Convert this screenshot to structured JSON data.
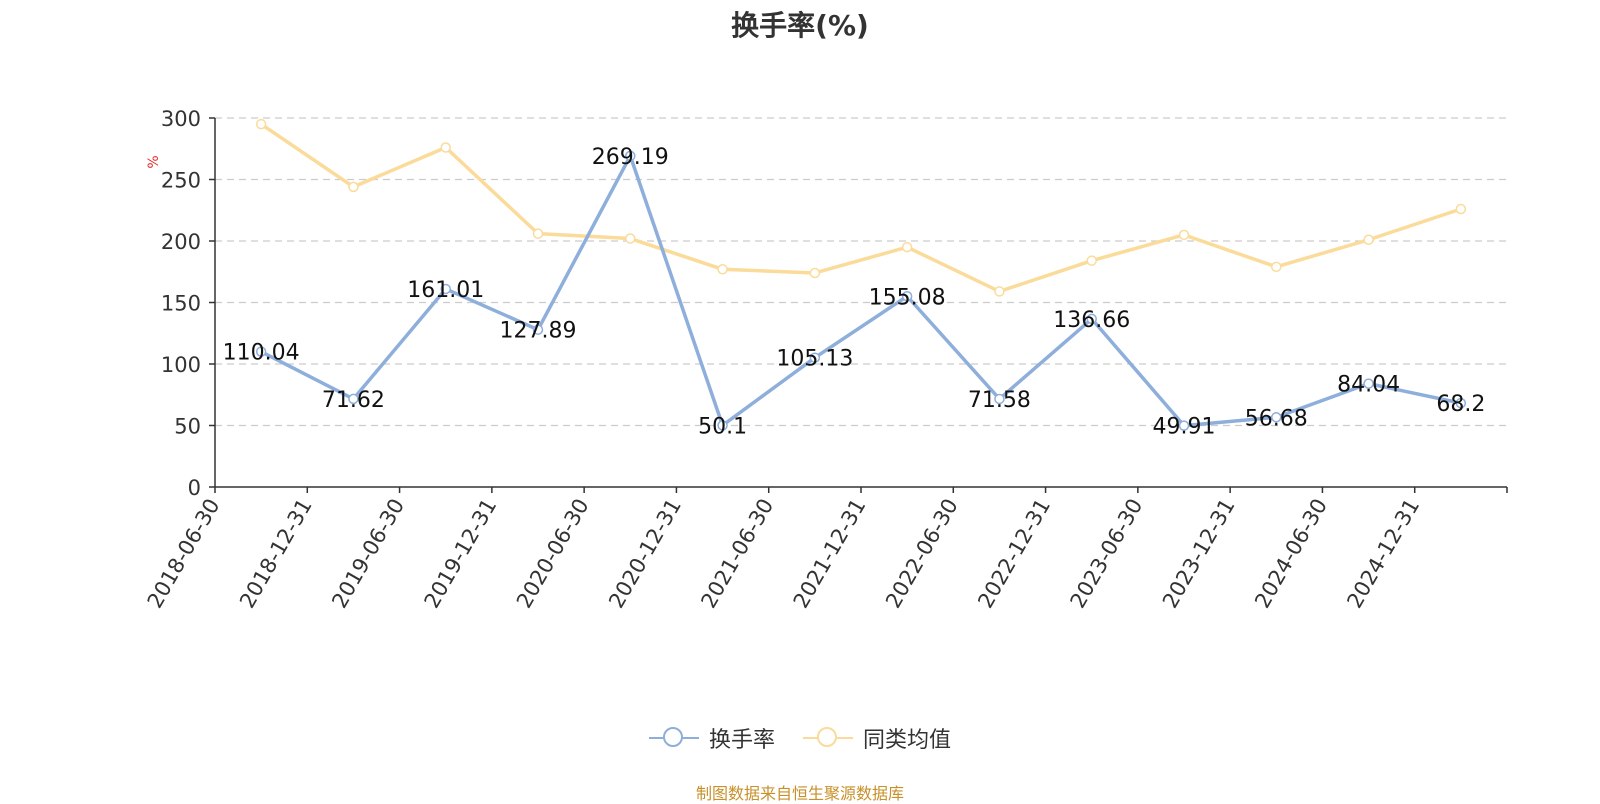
{
  "title": "换手率(%)",
  "source_note": "制图数据来自恒生聚源数据库",
  "legend_items": [
    {
      "label": "换手率",
      "color": "#8eaedb"
    },
    {
      "label": "同类均值",
      "color": "#fadb9a"
    }
  ],
  "chart_data": {
    "type": "line",
    "title": "换手率(%)",
    "ylabel": "%",
    "xlabel": "",
    "ylim": [
      0,
      300
    ],
    "yticks": [
      "0",
      "50",
      "100",
      "150",
      "200",
      "250",
      "300"
    ],
    "grid": true,
    "legend_position": "bottom",
    "categories": [
      "2018-06-30",
      "2018-12-31",
      "2019-06-30",
      "2019-12-31",
      "2020-06-30",
      "2020-12-31",
      "2021-06-30",
      "2021-12-31",
      "2022-06-30",
      "2022-12-31",
      "2023-06-30",
      "2023-12-31",
      "2024-06-30",
      "2024-12-31"
    ],
    "series": [
      {
        "name": "换手率",
        "color": "#8eaedb",
        "show_labels": true,
        "values": [
          110.04,
          71.62,
          161.01,
          127.89,
          269.19,
          50.1,
          105.13,
          155.08,
          71.58,
          136.66,
          49.91,
          56.68,
          84.04,
          68.2
        ],
        "labels": [
          "110.04",
          "71.62",
          "161.01",
          "127.89",
          "269.19",
          "50.1",
          "105.13",
          "155.08",
          "71.58",
          "136.66",
          "49.91",
          "56.68",
          "84.04",
          "68.2"
        ]
      },
      {
        "name": "同类均值",
        "color": "#fadb9a",
        "show_labels": false,
        "values": [
          295,
          244,
          276,
          206,
          202,
          177,
          174,
          195,
          159,
          184,
          205,
          179,
          201,
          226
        ]
      }
    ]
  }
}
